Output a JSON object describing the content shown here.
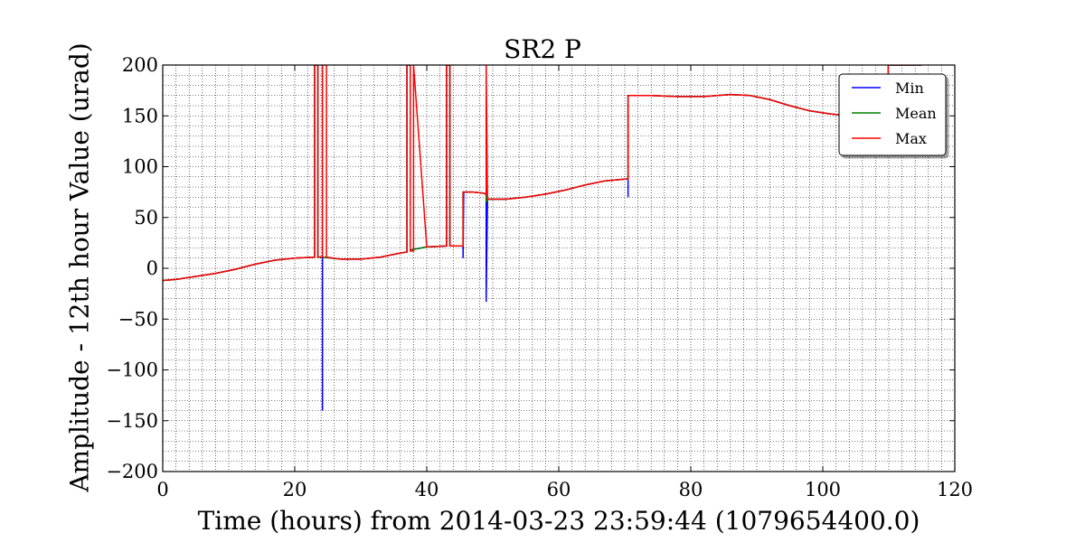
{
  "chart_data": {
    "type": "line",
    "title": "SR2 P",
    "xlabel": "Time (hours) from 2014-03-23 23:59:44 (1079654400.0)",
    "ylabel": "Amplitude - 12th hour Value (urad)",
    "xlim": [
      0,
      120
    ],
    "ylim": [
      -200,
      200
    ],
    "xticks": [
      0,
      20,
      40,
      60,
      80,
      100,
      120
    ],
    "yticks": [
      -200,
      -150,
      -100,
      -50,
      0,
      50,
      100,
      150,
      200
    ],
    "ytick_labels": [
      "−200",
      "−150",
      "−100",
      "−50",
      "0",
      "50",
      "100",
      "150",
      "200"
    ],
    "grid": true,
    "legend_position": "top-right",
    "series": [
      {
        "name": "Min",
        "color": "#0000ff",
        "x": [
          0,
          2,
          5,
          8,
          11,
          14,
          17,
          20,
          23,
          23,
          23.5,
          23.5,
          24.2,
          24.2,
          24.2,
          27,
          30,
          33,
          36,
          37,
          37,
          37.5,
          37.5,
          40,
          43,
          43,
          43.5,
          43.5,
          45.5,
          45.5,
          45.6,
          47,
          48.5,
          49,
          49,
          49.2,
          52,
          55,
          58,
          61,
          64,
          67,
          70.5,
          70.5,
          70.5,
          74,
          78,
          82,
          86,
          89,
          92,
          95,
          98,
          101,
          104,
          107,
          109.9,
          109.9,
          110,
          112,
          115
        ],
        "y": [
          -12,
          -11,
          -8,
          -5,
          -1,
          4,
          8,
          10,
          11,
          200,
          200,
          11,
          11,
          -140,
          11,
          9,
          9,
          11,
          15,
          16,
          200,
          200,
          18,
          21,
          22,
          200,
          200,
          22,
          22,
          10,
          75,
          75,
          74,
          73,
          -33,
          68,
          68,
          70,
          73,
          77,
          82,
          86,
          88,
          70,
          170,
          170,
          169,
          169,
          171,
          170,
          166,
          160,
          155,
          152,
          150,
          149,
          149,
          200,
          200,
          200,
          200
        ]
      },
      {
        "name": "Mean",
        "color": "#008000",
        "x": [
          0,
          2,
          5,
          8,
          11,
          14,
          17,
          20,
          23,
          23,
          23.5,
          23.5,
          24.2,
          24.2,
          27,
          30,
          33,
          36,
          37,
          37,
          37.5,
          37.5,
          40,
          43,
          43,
          43.5,
          43.5,
          45.5,
          45.5,
          47,
          48.5,
          49,
          49,
          49.2,
          52,
          55,
          58,
          61,
          64,
          67,
          70.5,
          70.5,
          74,
          78,
          82,
          86,
          89,
          92,
          95,
          98,
          101,
          104,
          107,
          109.9,
          109.9,
          110,
          112,
          115
        ],
        "y": [
          -12,
          -11,
          -8,
          -5,
          -1,
          4,
          8,
          10,
          11,
          200,
          200,
          11,
          11,
          11,
          9,
          9,
          11,
          15,
          16,
          200,
          200,
          18,
          21,
          22,
          200,
          200,
          22,
          22,
          75,
          75,
          74,
          73,
          65,
          68,
          68,
          70,
          73,
          77,
          82,
          86,
          88,
          170,
          170,
          169,
          169,
          171,
          170,
          166,
          160,
          155,
          152,
          150,
          149,
          149,
          200,
          200,
          200,
          200
        ]
      },
      {
        "name": "Max",
        "color": "#ff0000",
        "x": [
          0,
          2,
          5,
          8,
          11,
          14,
          17,
          20,
          23,
          23,
          23.5,
          23.5,
          24.2,
          24.2,
          24.8,
          24.8,
          27,
          30,
          33,
          36,
          37,
          37,
          37.5,
          37.5,
          38,
          38,
          40,
          43,
          43,
          43.5,
          43.5,
          45.5,
          45.5,
          47,
          48.5,
          49,
          49,
          49.2,
          52,
          55,
          58,
          61,
          64,
          67,
          70.5,
          70.5,
          74,
          78,
          82,
          86,
          89,
          92,
          95,
          98,
          101,
          104,
          107,
          109.9,
          109.9,
          110,
          112,
          115
        ],
        "y": [
          -12,
          -11,
          -8,
          -5,
          -1,
          4,
          8,
          10,
          11,
          200,
          200,
          11,
          11,
          200,
          200,
          11,
          9,
          9,
          11,
          15,
          16,
          200,
          200,
          17,
          17,
          200,
          21,
          22,
          200,
          200,
          22,
          22,
          75,
          75,
          74,
          73,
          200,
          68,
          68,
          70,
          73,
          77,
          82,
          86,
          88,
          170,
          170,
          169,
          169,
          171,
          170,
          166,
          160,
          155,
          152,
          150,
          149,
          149,
          200,
          200,
          200,
          200
        ]
      }
    ]
  }
}
